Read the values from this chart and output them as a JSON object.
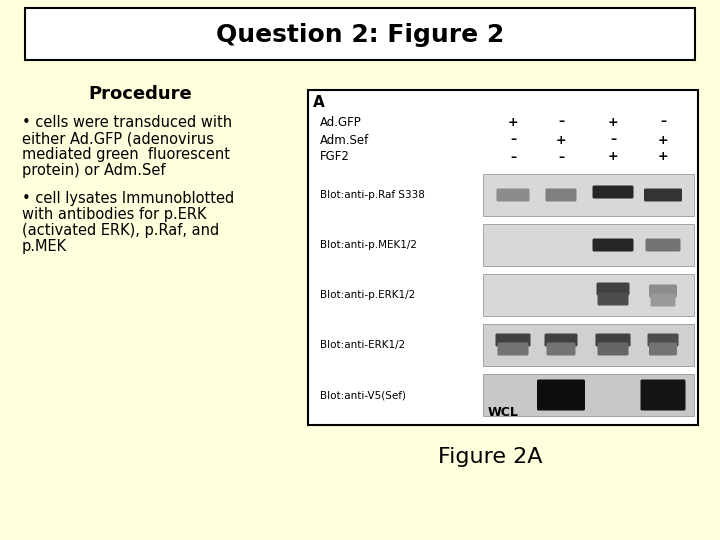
{
  "bg_color": "#ffffdd",
  "title_text": "Question 2: Figure 2",
  "title_box_color": "#ffffff",
  "title_box_edge": "#000000",
  "title_fontsize": 18,
  "title_fontweight": "bold",
  "procedure_title": "Procedure",
  "procedure_title_fontsize": 13,
  "procedure_title_fontweight": "bold",
  "bullet1_lines": [
    "• cells were transduced with",
    "either Ad.GFP (adenovirus",
    "mediated green  fluorescent",
    "protein) or Adm.Sef"
  ],
  "bullet2_lines": [
    "• cell lysates Immunoblotted",
    "with antibodies for p.ERK",
    "(activated ERK), p.Raf, and",
    "p.MEK"
  ],
  "bullet_fontsize": 10.5,
  "figure_label": "Figure 2A",
  "figure_label_fontsize": 16,
  "figure_label_color": "#000000",
  "blot_box_edge": "#000000",
  "panel_label": "A",
  "row_name_labels": [
    "Ad.GFP",
    "Adm.Sef",
    "FGF2"
  ],
  "plus_minus_rows": [
    [
      "+",
      "–",
      "+",
      "–"
    ],
    [
      "–",
      "+",
      "–",
      "+"
    ],
    [
      "–",
      "–",
      "+",
      "+"
    ]
  ],
  "band_labels": [
    "Blot:anti-p.Raf S338",
    "Blot:anti-p.MEK1/2",
    "Blot:anti-p.ERK1/2",
    "Blot:anti-ERK1/2",
    "Blot:anti-V5(Sef)"
  ],
  "wcl_label": "WCL"
}
